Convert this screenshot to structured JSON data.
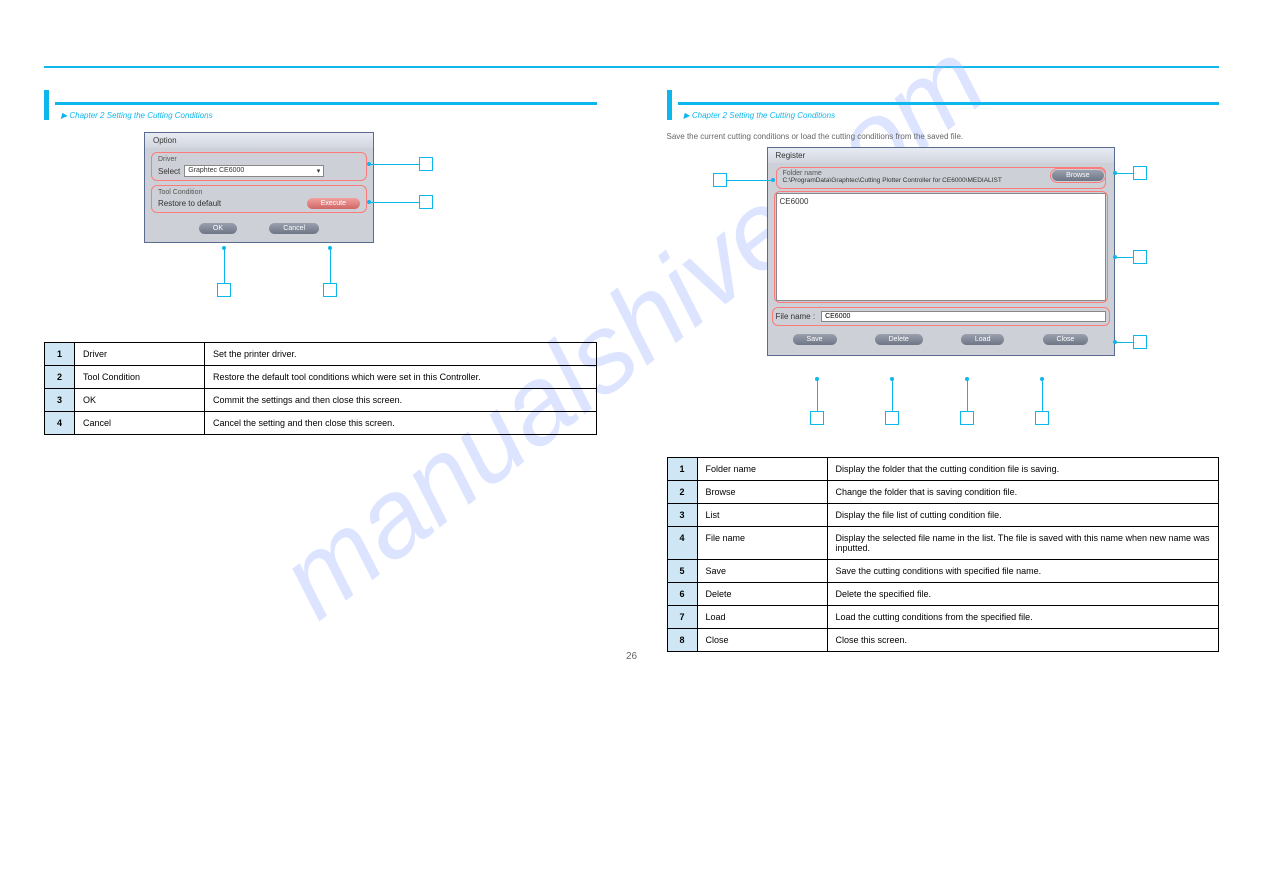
{
  "top_rule_color": "#0db7ec",
  "watermark": "manualshive.com",
  "left": {
    "section_title": "Option",
    "chapter_link": "▶ Chapter 2  Setting the Cutting Conditions",
    "dialog": {
      "title": "Option",
      "driver_label": "Driver",
      "select_label": "Select",
      "select_value": "Graphtec CE6000",
      "tool_label": "Tool Condition",
      "restore_label": "Restore to default",
      "execute_btn": "Execute",
      "ok_btn": "OK",
      "cancel_btn": "Cancel"
    },
    "desc_pre": "",
    "table": [
      {
        "n": "1",
        "name": "Driver",
        "desc": "Set the printer driver."
      },
      {
        "n": "2",
        "name": "Tool Condition",
        "desc": "Restore the default tool conditions which were set in this Controller."
      },
      {
        "n": "3",
        "name": "OK",
        "desc": "Commit the settings and then close this screen."
      },
      {
        "n": "4",
        "name": "Cancel",
        "desc": "Cancel the setting and then close this screen."
      }
    ]
  },
  "right": {
    "section_title": "Register",
    "chapter_link": "▶ Chapter 2  Setting the Cutting Conditions",
    "save_note": "Save the current cutting conditions or load the cutting conditions from the saved file.",
    "dialog": {
      "title": "Register",
      "folder_label": "Folder name",
      "folder_path": "C:\\ProgramData\\Graphtec\\Cutting Plotter Controller for CE6000\\MEDIALIST",
      "browse_btn": "Browse",
      "list_item": "CE6000",
      "filename_label": "File name :",
      "filename_value": "CE6000",
      "save_btn": "Save",
      "delete_btn": "Delete",
      "load_btn": "Load",
      "close_btn": "Close"
    },
    "table": [
      {
        "n": "1",
        "name": "Folder name",
        "desc": "Display the folder that the cutting condition file is saving."
      },
      {
        "n": "2",
        "name": "Browse",
        "desc": "Change the folder that is saving condition file."
      },
      {
        "n": "3",
        "name": "List",
        "desc": "Display the file list of cutting condition file."
      },
      {
        "n": "4",
        "name": "File name",
        "desc": "Display the selected file name in the list. The file is saved with this name when new name was inputted."
      },
      {
        "n": "5",
        "name": "Save",
        "desc": "Save the cutting conditions with specified file name."
      },
      {
        "n": "6",
        "name": "Delete",
        "desc": "Delete the specified file."
      },
      {
        "n": "7",
        "name": "Load",
        "desc": "Load the cutting conditions from the specified file."
      },
      {
        "n": "8",
        "name": "Close",
        "desc": "Close this screen."
      }
    ]
  },
  "page_number": "26"
}
